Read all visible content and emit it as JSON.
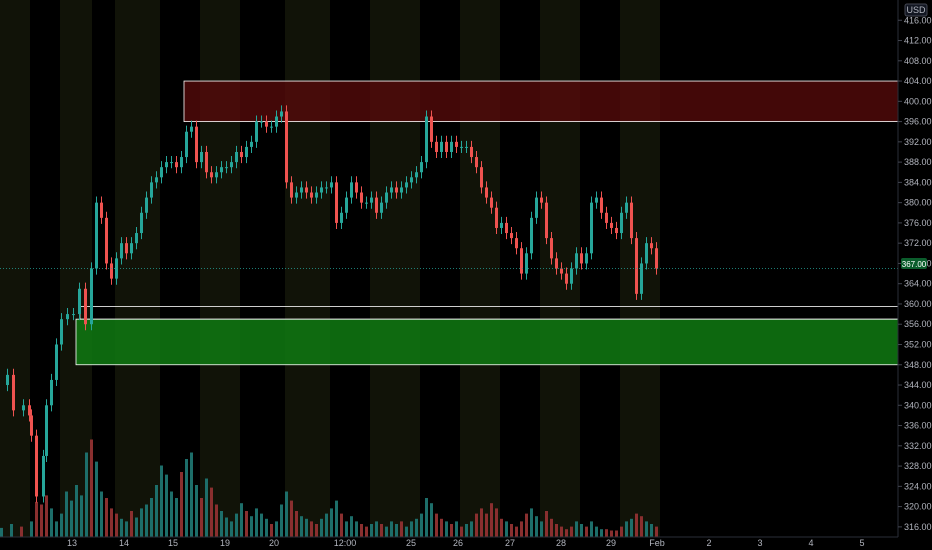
{
  "currency": "USD",
  "chart_data": {
    "type": "candlestick",
    "ylim": [
      314,
      420
    ],
    "y_ticks": [
      416,
      412,
      408,
      404,
      400,
      396,
      392,
      388,
      384,
      380,
      376,
      372,
      368,
      364,
      360,
      356,
      352,
      348,
      344,
      340,
      336,
      332,
      328,
      324,
      320,
      316
    ],
    "y_tick_labels": [
      "416.00",
      "412.00",
      "408.00",
      "404.00",
      "400.00",
      "396.00",
      "392.00",
      "388.00",
      "384.00",
      "380.00",
      "376.00",
      "372.00",
      "368.00",
      "364.00",
      "360.00",
      "356.00",
      "352.00",
      "348.00",
      "344.00",
      "340.00",
      "336.00",
      "332.00",
      "328.00",
      "324.00",
      "320.00",
      "316.00"
    ],
    "x_tick_labels": [
      "13",
      "14",
      "15",
      "19",
      "20",
      "12:00",
      "25",
      "26",
      "27",
      "28",
      "29",
      "Feb",
      "2",
      "3",
      "4",
      "5"
    ],
    "last_price": 367.0,
    "last_price_label": "367.00",
    "resistance_zone": [
      396,
      404
    ],
    "support_zone": [
      348,
      357
    ],
    "support_line": 359.5,
    "colors": {
      "up": "#26a69a",
      "down": "#ef5350",
      "session_band": "#1f230e"
    },
    "grid": false,
    "price_path": [
      [
        0,
        344
      ],
      [
        6,
        346
      ],
      [
        12,
        339
      ],
      [
        22,
        340
      ],
      [
        28,
        338
      ],
      [
        30,
        334
      ],
      [
        35,
        322
      ],
      [
        42,
        330
      ],
      [
        45,
        340
      ],
      [
        50,
        345
      ],
      [
        55,
        352
      ],
      [
        60,
        357
      ],
      [
        66,
        358
      ],
      [
        72,
        358
      ],
      [
        78,
        363
      ],
      [
        84,
        356
      ],
      [
        90,
        367
      ],
      [
        95,
        380
      ],
      [
        100,
        377
      ],
      [
        105,
        368
      ],
      [
        110,
        365
      ],
      [
        115,
        369
      ],
      [
        120,
        372
      ],
      [
        125,
        370
      ],
      [
        130,
        372
      ],
      [
        135,
        374
      ],
      [
        140,
        378
      ],
      [
        145,
        381
      ],
      [
        150,
        384
      ],
      [
        155,
        385
      ],
      [
        160,
        387
      ],
      [
        165,
        388
      ],
      [
        170,
        388
      ],
      [
        175,
        387
      ],
      [
        180,
        389
      ],
      [
        185,
        394
      ],
      [
        190,
        395
      ],
      [
        195,
        388
      ],
      [
        200,
        390
      ],
      [
        205,
        386
      ],
      [
        210,
        385
      ],
      [
        215,
        386
      ],
      [
        220,
        387
      ],
      [
        225,
        387
      ],
      [
        230,
        388
      ],
      [
        235,
        390
      ],
      [
        240,
        389
      ],
      [
        245,
        391
      ],
      [
        250,
        392
      ],
      [
        255,
        396
      ],
      [
        260,
        396
      ],
      [
        265,
        395
      ],
      [
        270,
        395
      ],
      [
        275,
        397
      ],
      [
        280,
        398
      ],
      [
        285,
        384
      ],
      [
        290,
        381
      ],
      [
        295,
        382
      ],
      [
        300,
        383
      ],
      [
        305,
        382
      ],
      [
        310,
        381
      ],
      [
        315,
        382
      ],
      [
        320,
        383
      ],
      [
        325,
        383
      ],
      [
        330,
        384
      ],
      [
        335,
        376
      ],
      [
        340,
        378
      ],
      [
        345,
        381
      ],
      [
        350,
        384
      ],
      [
        355,
        382
      ],
      [
        360,
        380
      ],
      [
        365,
        380
      ],
      [
        370,
        381
      ],
      [
        375,
        378
      ],
      [
        380,
        380
      ],
      [
        385,
        382
      ],
      [
        390,
        383
      ],
      [
        395,
        382
      ],
      [
        400,
        383
      ],
      [
        405,
        384
      ],
      [
        410,
        385
      ],
      [
        415,
        386
      ],
      [
        420,
        388
      ],
      [
        425,
        397
      ],
      [
        430,
        392
      ],
      [
        435,
        390
      ],
      [
        440,
        392
      ],
      [
        445,
        390
      ],
      [
        450,
        392
      ],
      [
        455,
        391
      ],
      [
        460,
        391
      ],
      [
        465,
        391
      ],
      [
        470,
        389
      ],
      [
        475,
        387
      ],
      [
        480,
        383
      ],
      [
        485,
        381
      ],
      [
        490,
        379
      ],
      [
        495,
        375
      ],
      [
        500,
        376
      ],
      [
        505,
        374
      ],
      [
        510,
        373
      ],
      [
        515,
        371
      ],
      [
        520,
        366
      ],
      [
        525,
        370
      ],
      [
        530,
        377
      ],
      [
        535,
        381
      ],
      [
        540,
        380
      ],
      [
        545,
        373
      ],
      [
        550,
        369
      ],
      [
        555,
        367
      ],
      [
        560,
        366
      ],
      [
        565,
        364
      ],
      [
        570,
        367
      ],
      [
        575,
        370
      ],
      [
        580,
        368
      ],
      [
        585,
        370
      ],
      [
        590,
        380
      ],
      [
        595,
        381
      ],
      [
        600,
        378
      ],
      [
        605,
        376
      ],
      [
        610,
        375
      ],
      [
        615,
        374
      ],
      [
        620,
        378
      ],
      [
        625,
        380
      ],
      [
        630,
        373
      ],
      [
        635,
        362
      ],
      [
        640,
        368
      ],
      [
        645,
        372
      ],
      [
        650,
        371
      ],
      [
        655,
        367
      ]
    ],
    "volume_path": [
      [
        0,
        7
      ],
      [
        10,
        10
      ],
      [
        20,
        8
      ],
      [
        30,
        12
      ],
      [
        35,
        27
      ],
      [
        40,
        25
      ],
      [
        45,
        32
      ],
      [
        50,
        22
      ],
      [
        55,
        12
      ],
      [
        60,
        18
      ],
      [
        65,
        35
      ],
      [
        70,
        28
      ],
      [
        75,
        40
      ],
      [
        80,
        32
      ],
      [
        85,
        65
      ],
      [
        90,
        75
      ],
      [
        95,
        58
      ],
      [
        100,
        35
      ],
      [
        105,
        30
      ],
      [
        110,
        22
      ],
      [
        115,
        18
      ],
      [
        120,
        14
      ],
      [
        125,
        12
      ],
      [
        130,
        20
      ],
      [
        135,
        15
      ],
      [
        140,
        22
      ],
      [
        145,
        25
      ],
      [
        150,
        30
      ],
      [
        155,
        40
      ],
      [
        160,
        55
      ],
      [
        165,
        48
      ],
      [
        170,
        35
      ],
      [
        175,
        30
      ],
      [
        180,
        50
      ],
      [
        185,
        60
      ],
      [
        190,
        65
      ],
      [
        195,
        40
      ],
      [
        200,
        30
      ],
      [
        205,
        45
      ],
      [
        210,
        38
      ],
      [
        215,
        25
      ],
      [
        220,
        20
      ],
      [
        225,
        15
      ],
      [
        230,
        12
      ],
      [
        235,
        18
      ],
      [
        240,
        26
      ],
      [
        245,
        20
      ],
      [
        250,
        16
      ],
      [
        255,
        22
      ],
      [
        260,
        18
      ],
      [
        265,
        14
      ],
      [
        270,
        10
      ],
      [
        275,
        12
      ],
      [
        280,
        25
      ],
      [
        285,
        35
      ],
      [
        290,
        28
      ],
      [
        295,
        20
      ],
      [
        300,
        16
      ],
      [
        305,
        14
      ],
      [
        310,
        12
      ],
      [
        315,
        10
      ],
      [
        320,
        14
      ],
      [
        325,
        18
      ],
      [
        330,
        22
      ],
      [
        335,
        28
      ],
      [
        340,
        18
      ],
      [
        345,
        12
      ],
      [
        350,
        16
      ],
      [
        355,
        12
      ],
      [
        360,
        10
      ],
      [
        365,
        8
      ],
      [
        370,
        10
      ],
      [
        375,
        12
      ],
      [
        380,
        10
      ],
      [
        385,
        8
      ],
      [
        390,
        12
      ],
      [
        395,
        10
      ],
      [
        400,
        12
      ],
      [
        405,
        8
      ],
      [
        410,
        12
      ],
      [
        415,
        14
      ],
      [
        420,
        18
      ],
      [
        425,
        30
      ],
      [
        430,
        26
      ],
      [
        435,
        18
      ],
      [
        440,
        14
      ],
      [
        445,
        12
      ],
      [
        450,
        10
      ],
      [
        455,
        12
      ],
      [
        460,
        8
      ],
      [
        465,
        10
      ],
      [
        470,
        12
      ],
      [
        475,
        18
      ],
      [
        480,
        22
      ],
      [
        485,
        18
      ],
      [
        490,
        26
      ],
      [
        495,
        22
      ],
      [
        500,
        14
      ],
      [
        505,
        12
      ],
      [
        510,
        10
      ],
      [
        515,
        8
      ],
      [
        520,
        12
      ],
      [
        525,
        18
      ],
      [
        530,
        22
      ],
      [
        535,
        16
      ],
      [
        540,
        12
      ],
      [
        545,
        20
      ],
      [
        550,
        14
      ],
      [
        555,
        10
      ],
      [
        560,
        8
      ],
      [
        565,
        6
      ],
      [
        570,
        8
      ],
      [
        575,
        12
      ],
      [
        580,
        10
      ],
      [
        585,
        8
      ],
      [
        590,
        12
      ],
      [
        595,
        8
      ],
      [
        600,
        6
      ],
      [
        605,
        6
      ],
      [
        610,
        5
      ],
      [
        615,
        5
      ],
      [
        620,
        8
      ],
      [
        625,
        12
      ],
      [
        630,
        14
      ],
      [
        635,
        18
      ],
      [
        640,
        16
      ],
      [
        645,
        12
      ],
      [
        650,
        10
      ],
      [
        655,
        8
      ]
    ]
  }
}
